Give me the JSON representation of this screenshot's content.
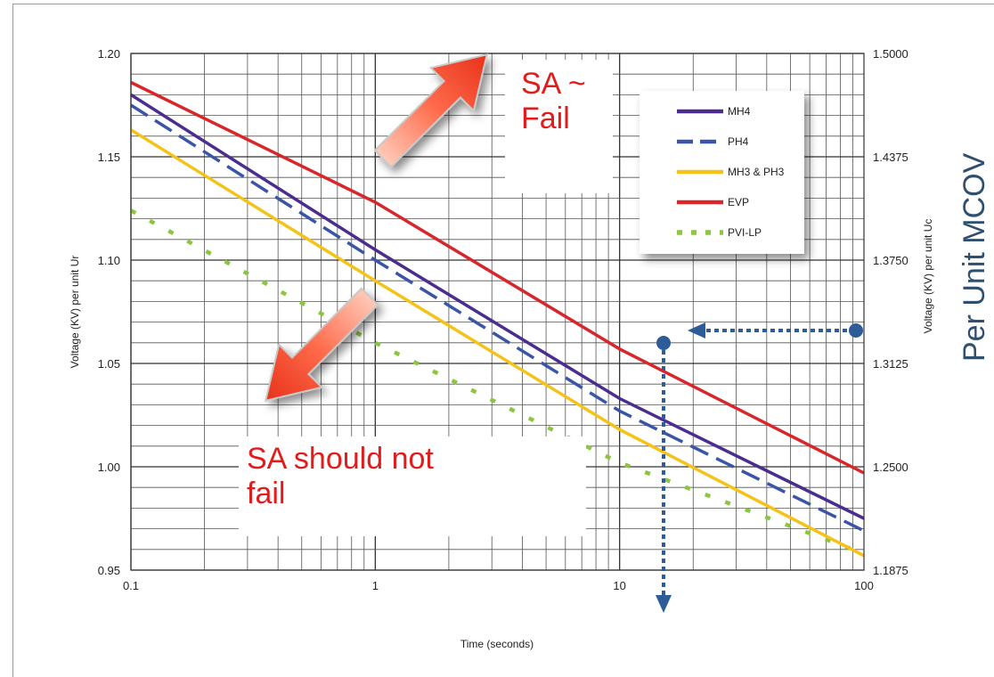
{
  "chart_data": {
    "type": "line",
    "xlabel": "Time (seconds)",
    "ylabel": "Voltage (KV) per unit Ur",
    "y2label": "Voltage (KV) per unit Uc",
    "x_scale": "log",
    "xlim": [
      0.1,
      100
    ],
    "ylim": [
      0.95,
      1.2
    ],
    "y2lim": [
      1.1875,
      1.5
    ],
    "x_ticks": [
      "0.1",
      "1",
      "10",
      "100"
    ],
    "y_ticks": [
      "0.95",
      "1.00",
      "1.05",
      "1.10",
      "1.15",
      "1.20"
    ],
    "y2_ticks": [
      "1.1875",
      "1.2500",
      "1.3125",
      "1.3750",
      "1.4375",
      "1.5000"
    ],
    "grid": true,
    "legend_position": "top-right",
    "series": [
      {
        "name": "MH4",
        "color": "#4b2d8f",
        "style": "solid",
        "x": [
          0.1,
          1,
          10,
          100
        ],
        "y": [
          1.18,
          1.105,
          1.033,
          0.975
        ]
      },
      {
        "name": "PH4",
        "color": "#3a55a8",
        "style": "dashed",
        "x": [
          0.1,
          1,
          10,
          100
        ],
        "y": [
          1.175,
          1.1,
          1.027,
          0.969
        ]
      },
      {
        "name": "MH3 & PH3",
        "color": "#f5c218",
        "style": "solid",
        "x": [
          0.1,
          1,
          10,
          100
        ],
        "y": [
          1.163,
          1.09,
          1.018,
          0.957
        ]
      },
      {
        "name": "EVP",
        "color": "#d9262b",
        "style": "solid",
        "x": [
          0.1,
          1,
          10,
          100
        ],
        "y": [
          1.186,
          1.128,
          1.057,
          0.997
        ]
      },
      {
        "name": "PVI-LP",
        "color": "#8cc63f",
        "style": "dotted",
        "x": [
          0.1,
          1,
          10,
          100
        ],
        "y": [
          1.124,
          1.06,
          1.002,
          0.958
        ]
      }
    ],
    "annotations": {
      "fail_text": [
        "SA ~",
        "Fail"
      ],
      "no_fail_text": [
        "SA should not",
        "fail"
      ],
      "side_label": "Per Unit MCOV"
    }
  }
}
